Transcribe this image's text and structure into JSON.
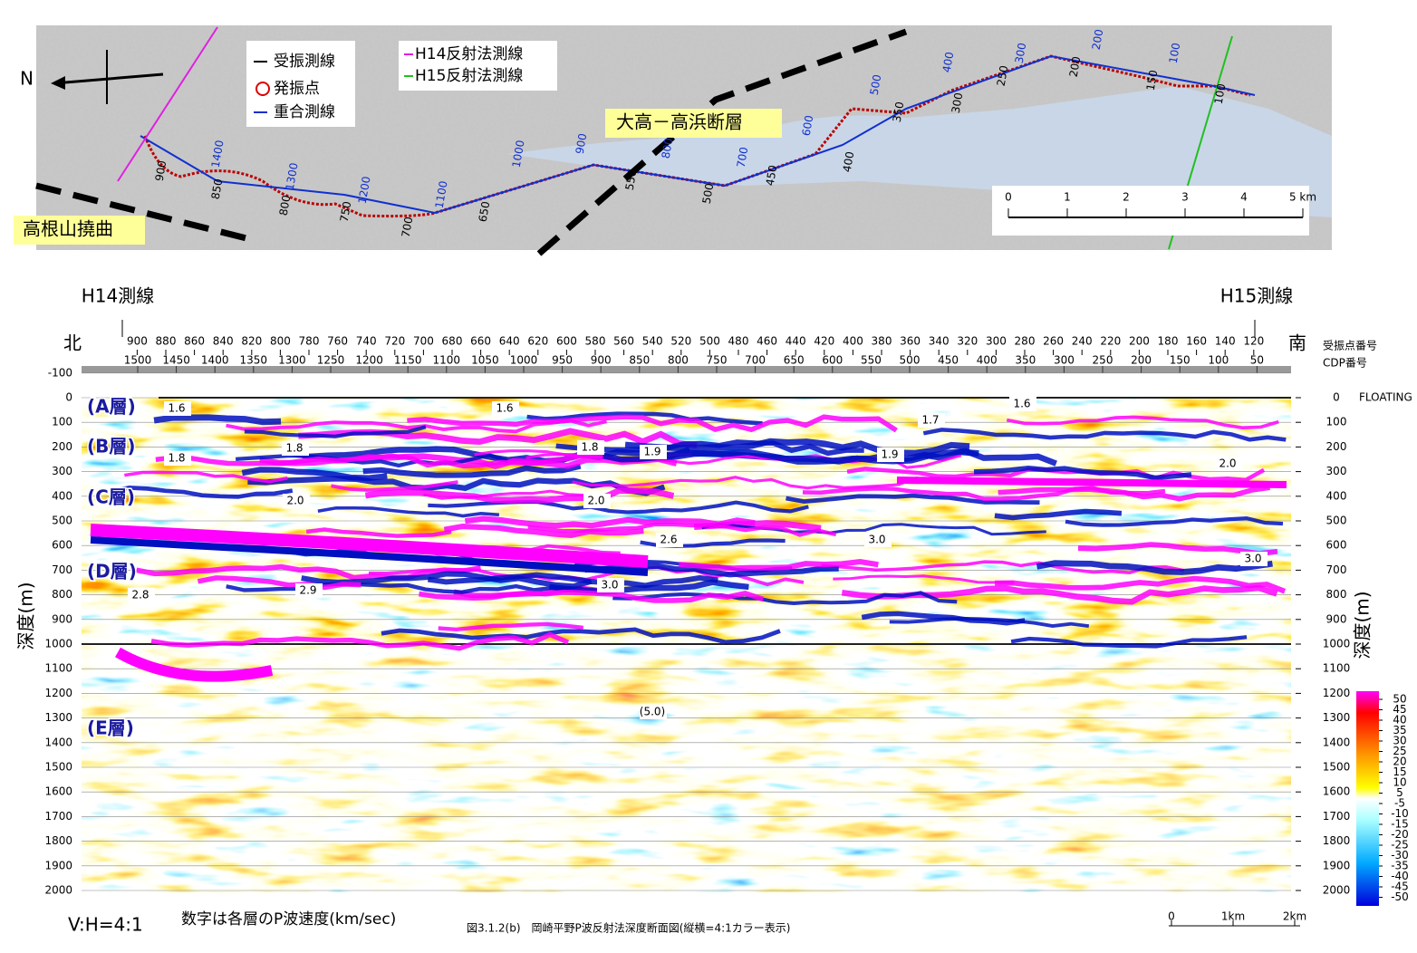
{
  "map": {
    "north": "N",
    "legend": [
      "受振測線",
      "発振点",
      "重合測線"
    ],
    "legend2": [
      "H14反射法測線",
      "H15反射法測線"
    ],
    "faults": [
      "大高－高浜断層",
      "高根山撓曲"
    ],
    "shot_labels": [
      "900",
      "850",
      "800",
      "750",
      "700",
      "650",
      "550",
      "500",
      "450",
      "400",
      "350",
      "300",
      "250",
      "200",
      "150",
      "100"
    ],
    "cdp_labels": [
      "1400",
      "1300",
      "1200",
      "1100",
      "1000",
      "900",
      "800",
      "700",
      "600",
      "500",
      "400",
      "300",
      "200",
      "100"
    ],
    "scale": [
      "0",
      "1",
      "2",
      "3",
      "4",
      "5 km"
    ]
  },
  "section": {
    "line_left": "H14測線",
    "line_right": "H15測線",
    "north": "北",
    "south": "南",
    "shot_axis_name": "受振点番号",
    "cdp_axis_name": "CDP番号",
    "shot_ticks": [
      900,
      880,
      860,
      840,
      820,
      800,
      780,
      760,
      740,
      720,
      700,
      680,
      660,
      640,
      620,
      600,
      580,
      560,
      540,
      520,
      500,
      480,
      460,
      440,
      420,
      400,
      380,
      360,
      340,
      320,
      300,
      280,
      260,
      240,
      220,
      200,
      180,
      160,
      140,
      120
    ],
    "cdp_ticks": [
      1500,
      1450,
      1400,
      1350,
      1300,
      1250,
      1200,
      1150,
      1100,
      1050,
      1000,
      950,
      900,
      850,
      800,
      750,
      700,
      650,
      600,
      550,
      500,
      450,
      400,
      350,
      300,
      250,
      200,
      150,
      100,
      50
    ],
    "depth_ticks": [
      -100,
      0,
      100,
      200,
      300,
      400,
      500,
      600,
      700,
      800,
      900,
      1000,
      1100,
      1200,
      1300,
      1400,
      1500,
      1600,
      1700,
      1800,
      1900,
      2000
    ],
    "right_ticks": [
      0,
      100,
      200,
      300,
      400,
      500,
      600,
      700,
      800,
      900,
      1000,
      1100,
      1200,
      1300,
      1400,
      1500,
      1600,
      1700,
      1800,
      1900,
      2000
    ],
    "floating": "FLOATING",
    "depth_label": "深度(m)",
    "layers": [
      "(A層)",
      "(B層)",
      "(C層)",
      "(D層)",
      "(E層)"
    ],
    "velocities": [
      "1.6",
      "1.6",
      "1.7",
      "1.6",
      "1.8",
      "1.8",
      "1.8",
      "1.9",
      "1.9",
      "2.0",
      "2.0",
      "2.0",
      "2.6",
      "3.0",
      "3.0",
      "2.8",
      "2.9",
      "3.0",
      "(5.0)"
    ],
    "colorbar_ticks": [
      50,
      45,
      40,
      35,
      30,
      25,
      20,
      15,
      10,
      5,
      -5,
      -10,
      -15,
      -20,
      -25,
      -30,
      -35,
      -40,
      -45,
      -50
    ],
    "ratio": "V:H=4:1",
    "note": "数字は各層のP波速度(km/sec)",
    "caption": "図3.1.2(b)　岡崎平野P波反射法深度断面図(縦横=4:1カラー表示)",
    "scale": [
      "0",
      "1km",
      "2km"
    ]
  }
}
